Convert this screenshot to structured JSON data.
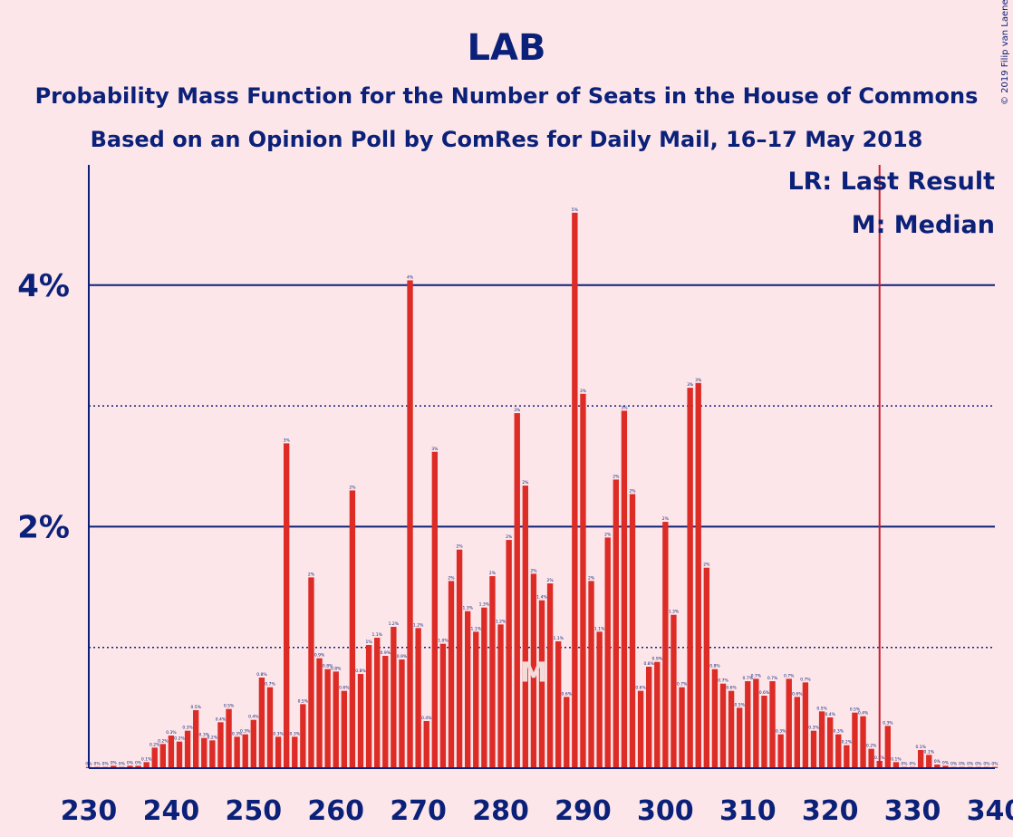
{
  "chart_data": {
    "type": "bar",
    "title": "LAB",
    "subtitle": "Probability Mass Function for the Number of Seats in the House of Commons",
    "subtitle2": "Based on an Opinion Poll by ComRes for Daily Mail, 16–17 May 2018",
    "copyright": "© 2019 Filip van Laenen",
    "xlim": [
      230,
      340
    ],
    "ylim": [
      0,
      5
    ],
    "x_ticks": [
      230,
      240,
      250,
      260,
      270,
      280,
      290,
      300,
      310,
      320,
      330,
      340
    ],
    "x_tick_labels": [
      "230",
      "240",
      "250",
      "260",
      "270",
      "280",
      "290",
      "300",
      "310",
      "320",
      "330",
      "340"
    ],
    "y_ticks_labeled": [
      2,
      4
    ],
    "y_tick_labels": [
      "2%",
      "4%"
    ],
    "y_gridlines_solid": [
      2,
      4
    ],
    "y_gridlines_dotted": [
      1,
      3
    ],
    "grid": true,
    "legend": {
      "placement": "top-right",
      "lr_text": "LR: Last Result",
      "m_text": "M: Median"
    },
    "last_result": 326,
    "last_result_marker": "LR",
    "median": 284,
    "median_marker": "M",
    "bar_color": "#dd2b26",
    "text_color": "#0b2179",
    "background": "#fde6e9",
    "lr_line_color": "#cc1c2c",
    "x": [
      230,
      231,
      232,
      233,
      234,
      235,
      236,
      237,
      238,
      239,
      240,
      241,
      242,
      243,
      244,
      245,
      246,
      247,
      248,
      249,
      250,
      251,
      252,
      253,
      254,
      255,
      256,
      257,
      258,
      259,
      260,
      261,
      262,
      263,
      264,
      265,
      266,
      267,
      268,
      269,
      270,
      271,
      272,
      273,
      274,
      275,
      276,
      277,
      278,
      279,
      280,
      281,
      282,
      283,
      284,
      285,
      286,
      287,
      288,
      289,
      290,
      291,
      292,
      293,
      294,
      295,
      296,
      297,
      298,
      299,
      300,
      301,
      302,
      303,
      304,
      305,
      306,
      307,
      308,
      309,
      310,
      311,
      312,
      313,
      314,
      315,
      316,
      317,
      318,
      319,
      320,
      321,
      322,
      323,
      324,
      325,
      326,
      327,
      328,
      329,
      330,
      331,
      332,
      333,
      334,
      335,
      336,
      337,
      338,
      339,
      340
    ],
    "values": [
      0.01,
      0.01,
      0.01,
      0.02,
      0.01,
      0.02,
      0.02,
      0.05,
      0.17,
      0.2,
      0.27,
      0.22,
      0.31,
      0.48,
      0.25,
      0.23,
      0.38,
      0.49,
      0.26,
      0.28,
      0.4,
      0.75,
      0.67,
      0.26,
      2.69,
      0.26,
      0.53,
      1.58,
      0.91,
      0.82,
      0.8,
      0.64,
      2.3,
      0.78,
      1.02,
      1.08,
      0.93,
      1.17,
      0.9,
      4.04,
      1.16,
      0.39,
      2.62,
      1.03,
      1.55,
      1.81,
      1.3,
      1.13,
      1.33,
      1.59,
      1.19,
      1.89,
      2.94,
      2.34,
      1.61,
      1.39,
      1.53,
      1.05,
      0.59,
      4.6,
      3.1,
      1.55,
      1.13,
      1.91,
      2.39,
      2.96,
      2.27,
      0.64,
      0.84,
      0.88,
      2.04,
      1.27,
      0.67,
      3.15,
      3.19,
      1.66,
      0.82,
      0.7,
      0.64,
      0.5,
      0.72,
      0.74,
      0.6,
      0.72,
      0.28,
      0.74,
      0.59,
      0.71,
      0.31,
      0.47,
      0.42,
      0.28,
      0.19,
      0.46,
      0.43,
      0.16,
      0.06,
      0.35,
      0.05,
      0.01,
      0.01,
      0.15,
      0.11,
      0.03,
      0.02,
      0.01,
      0.01,
      0.01,
      0.01,
      0.01,
      0.01
    ],
    "data_labels": [
      "0%",
      "0%",
      "0%",
      "0%",
      "0%",
      "0%",
      "0%",
      "0.1%",
      "0.2%",
      "0.2%",
      "0.3%",
      "0.2%",
      "0.3%",
      "0.5%",
      "0.3%",
      "0.2%",
      "0.4%",
      "0.5%",
      "0.3%",
      "0.3%",
      "0.4%",
      "0.8%",
      "0.7%",
      "0.3%",
      "3%",
      "0.3%",
      "0.5%",
      "2%",
      "0.9%",
      "0.8%",
      "0.8%",
      "0.6%",
      "2%",
      "0.8%",
      "1%",
      "1.1%",
      "0.9%",
      "1.2%",
      "0.9%",
      "4%",
      "1.2%",
      "0.4%",
      "3%",
      "1.0%",
      "2%",
      "2%",
      "1.3%",
      "1.1%",
      "1.3%",
      "2%",
      "1.2%",
      "2%",
      "3%",
      "2%",
      "2%",
      "1.4%",
      "2%",
      "1.1%",
      "0.6%",
      "5%",
      "3%",
      "2%",
      "1.1%",
      "2%",
      "2%",
      "3%",
      "2%",
      "0.6%",
      "0.8%",
      "0.9%",
      "2%",
      "1.3%",
      "0.7%",
      "3%",
      "3%",
      "2%",
      "0.8%",
      "0.7%",
      "0.6%",
      "0.5%",
      "0.7%",
      "0.7%",
      "0.6%",
      "0.7%",
      "0.3%",
      "0.7%",
      "0.6%",
      "0.7%",
      "0.3%",
      "0.5%",
      "0.4%",
      "0.3%",
      "0.2%",
      "0.5%",
      "0.4%",
      "0.2%",
      "0.1%",
      "0.3%",
      "0.1%",
      "0%",
      "0%",
      "0.1%",
      "0.1%",
      "0%",
      "0%",
      "0%",
      "0%",
      "0%",
      "0%",
      "0%",
      "0%"
    ]
  }
}
